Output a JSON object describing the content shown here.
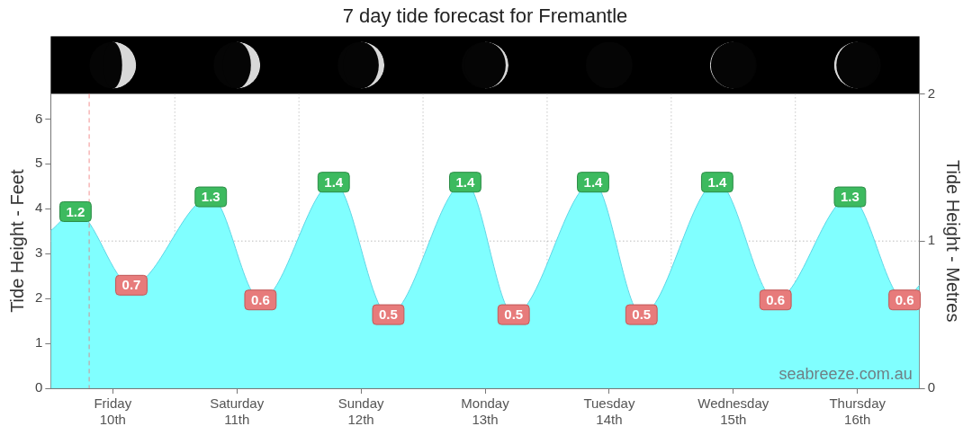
{
  "chart_data": {
    "type": "area",
    "title": "7 day tide forecast for Fremantle",
    "y_label": "Tide Height - Feet",
    "y2_label": "Tide Height - Metres",
    "x": [
      0,
      0.2,
      0.65,
      1.29,
      1.69,
      2.28,
      2.72,
      3.34,
      3.73,
      4.37,
      4.76,
      5.37,
      5.84,
      6.44,
      6.88,
      7
    ],
    "series": [
      {
        "axis": "y2",
        "color": "#80ffff",
        "values": [
          1.07,
          1.2,
          0.7,
          1.3,
          0.6,
          1.4,
          0.5,
          1.4,
          0.5,
          1.4,
          0.5,
          1.4,
          0.6,
          1.3,
          0.6,
          0.7
        ],
        "value_labels": [
          null,
          "1.2",
          "0.7",
          "1.3",
          "0.6",
          "1.4",
          "0.5",
          "1.4",
          "0.5",
          "1.4",
          "0.5",
          "1.4",
          "0.6",
          "1.3",
          "0.6",
          null
        ]
      }
    ],
    "xlim": [
      0,
      7
    ],
    "xticks": [
      {
        "value": 0.5,
        "label": "Friday 10th"
      },
      {
        "value": 1.5,
        "label": "Saturday 11th"
      },
      {
        "value": 2.5,
        "label": "Sunday 12th"
      },
      {
        "value": 3.5,
        "label": "Monday 13th"
      },
      {
        "value": 4.5,
        "label": "Tuesday 14th"
      },
      {
        "value": 5.5,
        "label": "Wednesday 15th"
      },
      {
        "value": 6.5,
        "label": "Thursday 16th"
      }
    ],
    "ylim": [
      0,
      6.56
    ],
    "yticks": [
      0,
      1,
      2,
      3,
      4,
      5,
      6
    ],
    "y2lim": [
      0,
      2
    ],
    "y2ticks": [
      0,
      1,
      2
    ],
    "grid": true,
    "data_labels": true,
    "annotations": [
      "seabreeze.com.au"
    ],
    "current_time": 0.31,
    "moon_illumination": [
      0.3,
      0.2,
      0.12,
      0.06,
      0.0,
      0.02,
      0.05
    ],
    "moon_waxing": [
      false,
      false,
      false,
      false,
      false,
      true,
      true
    ]
  }
}
